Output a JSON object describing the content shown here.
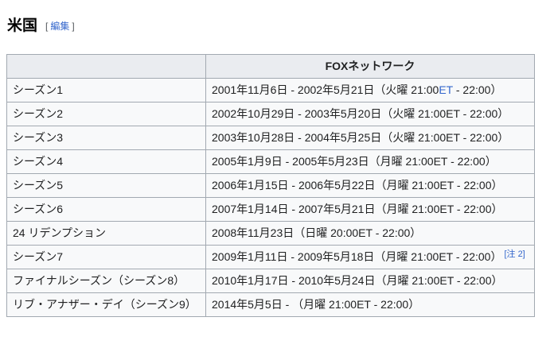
{
  "heading": {
    "title": "米国",
    "edit": {
      "bracket_open": "[",
      "label": "編集",
      "bracket_close": "]"
    }
  },
  "table": {
    "header": {
      "col1": "",
      "col2": "FOXネットワーク"
    },
    "rows": [
      {
        "season": "シーズン1",
        "air": [
          {
            "k": "text",
            "t": "2001年11月6日 - 2002年5月21日（火曜 21:00"
          },
          {
            "k": "link",
            "t": "ET"
          },
          {
            "k": "text",
            "t": " - 22:00）"
          }
        ]
      },
      {
        "season": "シーズン2",
        "air": [
          {
            "k": "text",
            "t": "2002年10月29日 - 2003年5月20日（火曜 21:00ET - 22:00）"
          }
        ]
      },
      {
        "season": "シーズン3",
        "air": [
          {
            "k": "text",
            "t": "2003年10月28日 - 2004年5月25日（火曜 21:00ET - 22:00）"
          }
        ]
      },
      {
        "season": "シーズン4",
        "air": [
          {
            "k": "text",
            "t": "2005年1月9日 - 2005年5月23日（月曜 21:00ET - 22:00）"
          }
        ]
      },
      {
        "season": "シーズン5",
        "air": [
          {
            "k": "text",
            "t": "2006年1月15日 - 2006年5月22日（月曜 21:00ET - 22:00）"
          }
        ]
      },
      {
        "season": "シーズン6",
        "air": [
          {
            "k": "text",
            "t": "2007年1月14日 - 2007年5月21日（月曜 21:00ET - 22:00）"
          }
        ]
      },
      {
        "season": "24 リデンプション",
        "air": [
          {
            "k": "text",
            "t": "2008年11月23日（日曜 20:00ET - 22:00）"
          }
        ]
      },
      {
        "season": "シーズン7",
        "air": [
          {
            "k": "text",
            "t": "2009年1月11日 - 2009年5月18日（月曜 21:00ET - 22:00）"
          },
          {
            "k": "sup",
            "t": "[注 2]"
          }
        ]
      },
      {
        "season": "ファイナルシーズン（シーズン8）",
        "air": [
          {
            "k": "text",
            "t": "2010年1月17日 - 2010年5月24日（月曜 21:00ET - 22:00）"
          }
        ]
      },
      {
        "season": "リブ・アナザー・デイ（シーズン9）",
        "air": [
          {
            "k": "text",
            "t": "2014年5月5日 - （月曜 21:00ET - 22:00）"
          }
        ]
      }
    ]
  },
  "colors": {
    "link_blue": "#3366cc",
    "header_bg": "#eaecf0",
    "row_bg": "#f8f9fa",
    "border_gray": "#a2a9b1",
    "text": "#202122",
    "edit_bracket": "#54595d"
  }
}
